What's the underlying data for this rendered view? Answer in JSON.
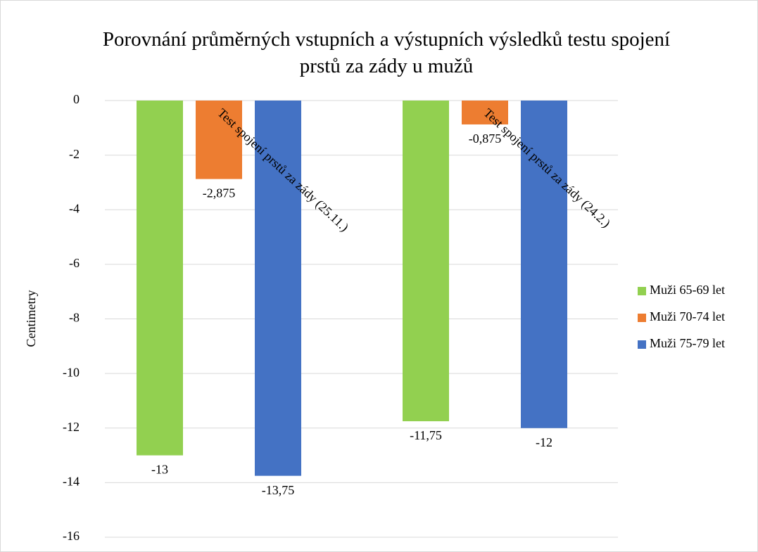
{
  "chart_data": {
    "type": "bar",
    "title": "Porovnání průměrných vstupních a výstupních výsledků testu spojení prstů za zády u mužů",
    "y_label": "Centimetry",
    "categories": [
      "Test spojení prstů za zády (25.11.)",
      "Test spojení prstů za zády (24.2.)"
    ],
    "series": [
      {
        "name": "Muži 65-69 let",
        "color": "#92d050",
        "values": [
          -13,
          -11.75
        ],
        "value_labels": [
          "-13",
          "-11,75"
        ]
      },
      {
        "name": "Muži 70-74 let",
        "color": "#ed7d31",
        "values": [
          -2.875,
          -0.875
        ],
        "value_labels": [
          "-2,875",
          "-0,875"
        ]
      },
      {
        "name": "Muži 75-79 let",
        "color": "#4472c4",
        "values": [
          -13.75,
          -12
        ],
        "value_labels": [
          "-13,75",
          "-12"
        ]
      }
    ],
    "ylim": [
      -16,
      0
    ],
    "yticks": [
      0,
      -2,
      -4,
      -6,
      -8,
      -10,
      -12,
      -14,
      -16
    ],
    "grid": true,
    "legend": "right"
  }
}
